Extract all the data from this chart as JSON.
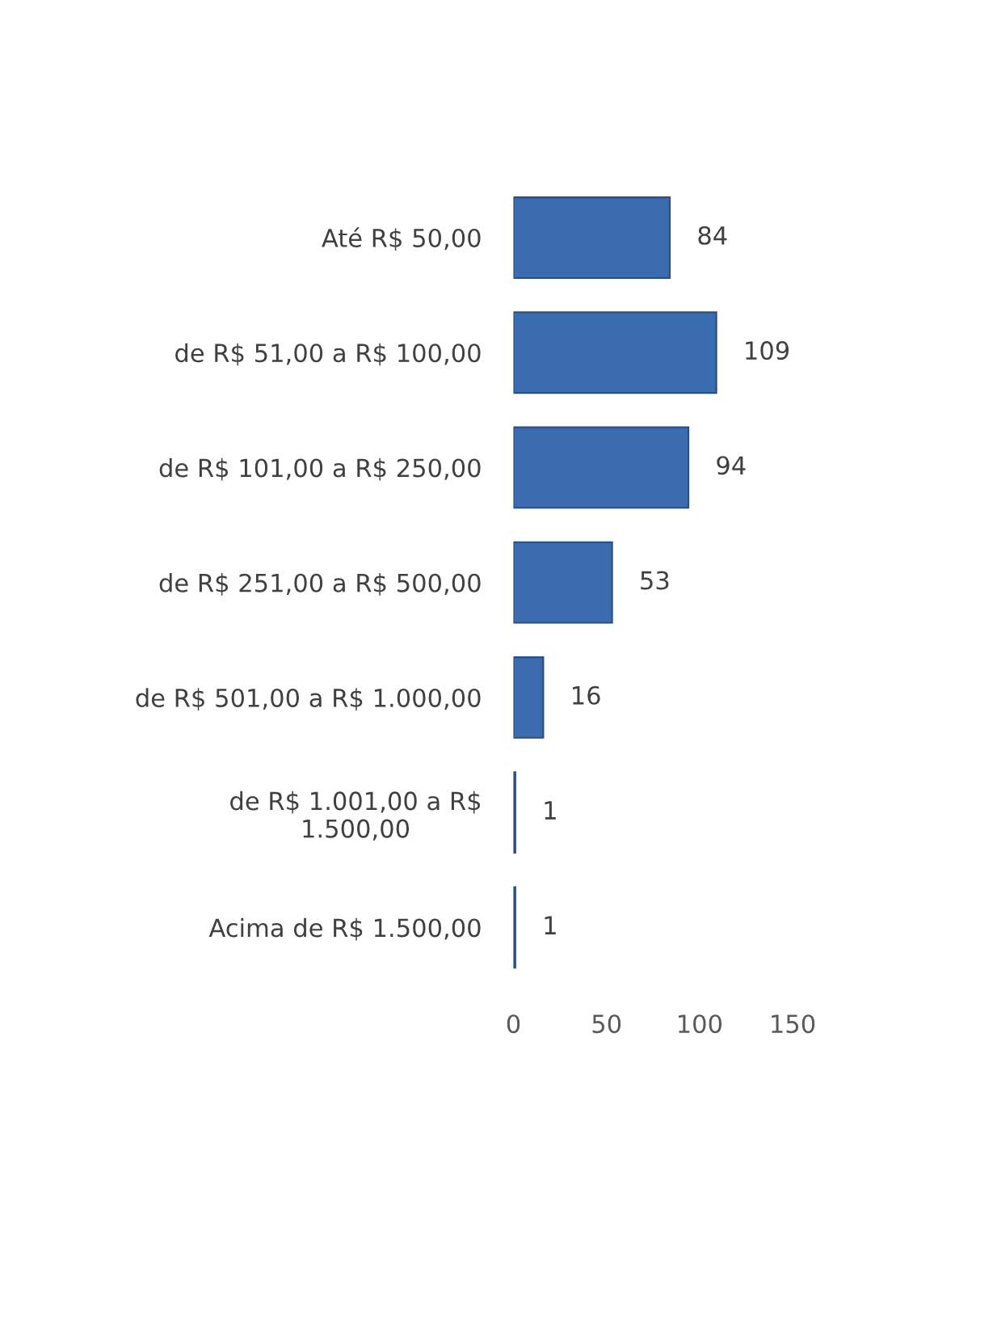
{
  "chart_data": {
    "type": "bar",
    "orientation": "horizontal",
    "categories": [
      "Até R$ 50,00",
      "de R$ 51,00 a R$ 100,00",
      "de R$ 101,00 a R$ 250,00",
      "de R$ 251,00 a R$ 500,00",
      "de R$ 501,00 a R$ 1.000,00",
      "de R$ 1.001,00 a R$\n1.500,00",
      "Acima de R$ 1.500,00"
    ],
    "values": [
      84,
      109,
      94,
      53,
      16,
      1,
      1
    ],
    "color": "#3c6cb0",
    "xlim": [
      0,
      150
    ],
    "xticks": [
      0,
      50,
      100,
      150
    ],
    "data_labels": true,
    "grid": false
  }
}
